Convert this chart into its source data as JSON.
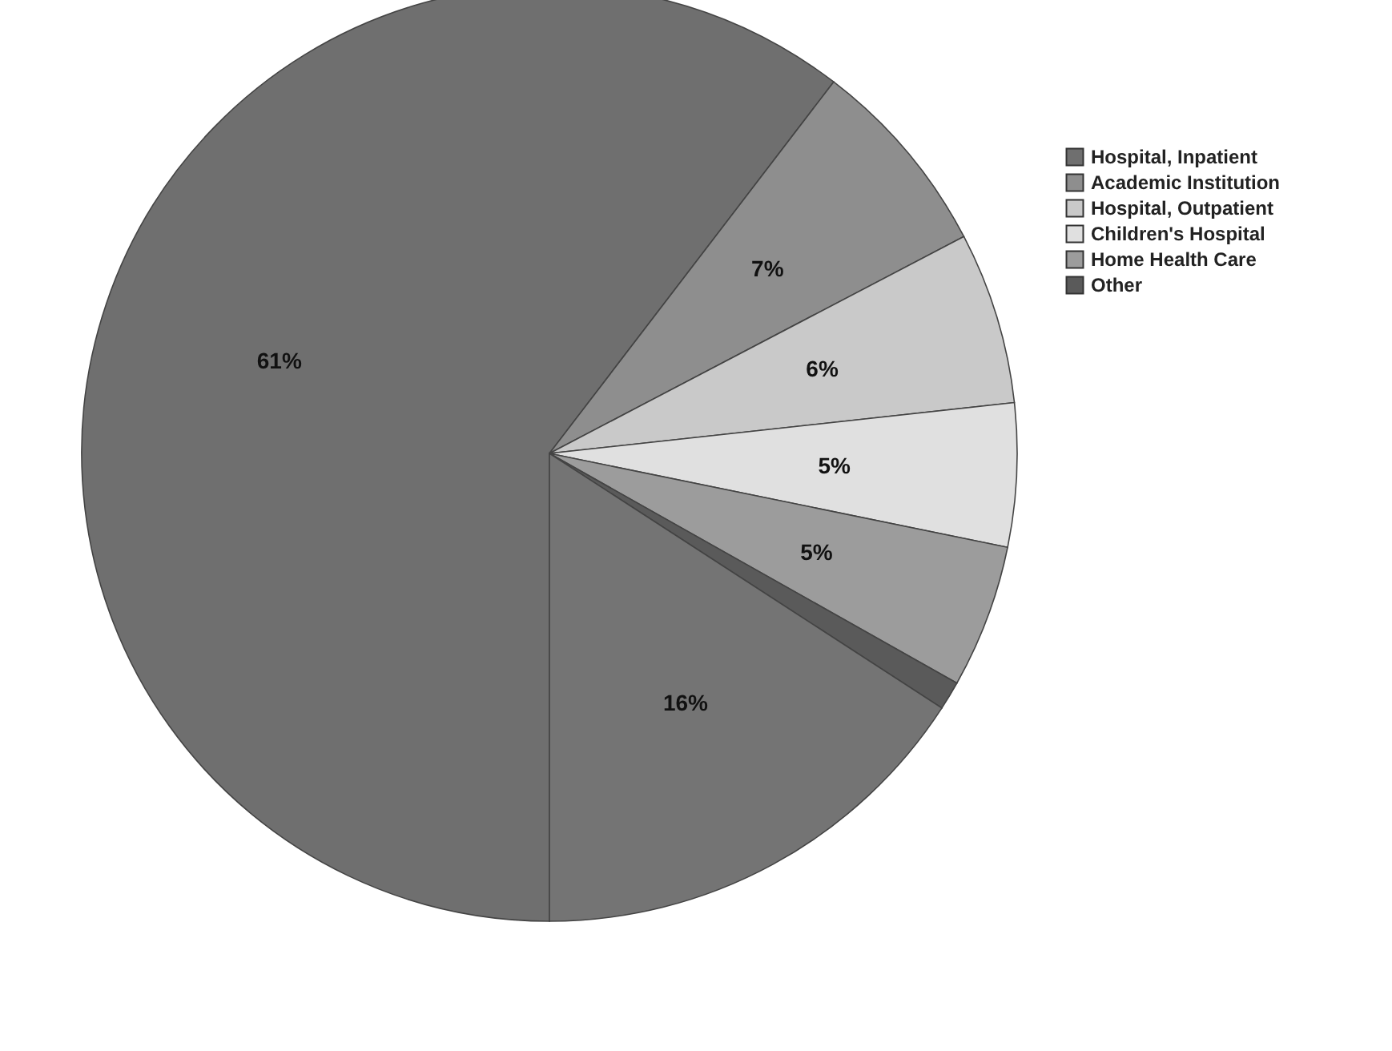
{
  "chart_data": {
    "type": "pie",
    "categories": [
      "Hospital, Inpatient",
      "Academic Institution",
      "Hospital, Outpatient",
      "Children's Hospital",
      "Home Health Care",
      "Other",
      null
    ],
    "values": [
      61,
      7,
      6,
      5,
      5,
      1,
      16
    ],
    "colors": [
      "#6f6f6f",
      "#8e8e8e",
      "#c9c9c9",
      "#e0e0e0",
      "#9c9c9c",
      "#5a5a5a",
      "#747474"
    ],
    "value_labels": [
      "61%",
      "7%",
      "6%",
      "5%",
      "5%",
      null,
      "16%"
    ],
    "legend": "top right"
  }
}
